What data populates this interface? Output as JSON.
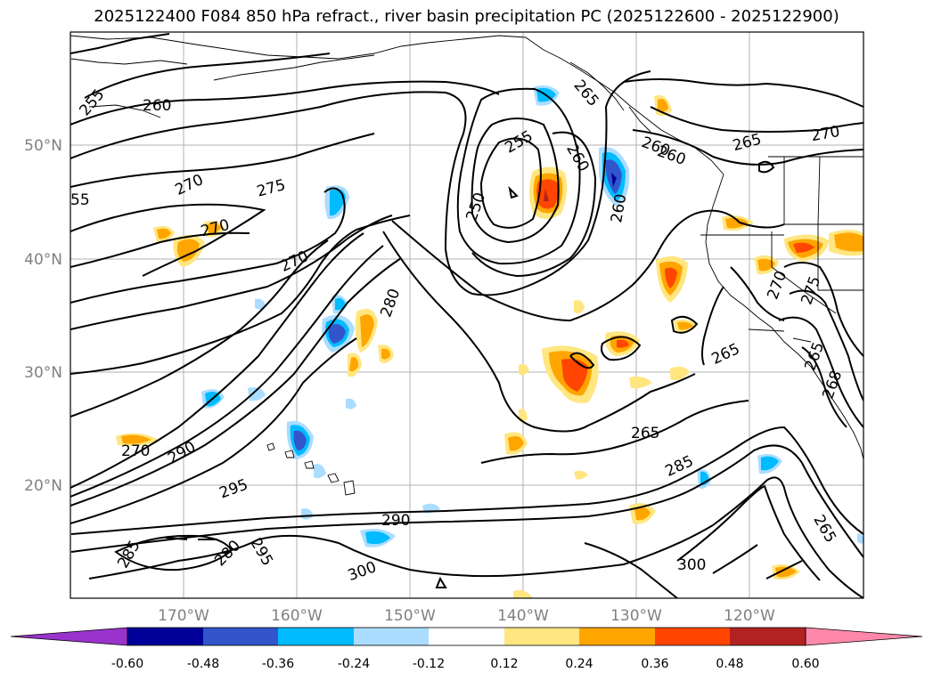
{
  "title": "2025122400 F084 850 hPa refract., river basin precipitation PC (2025122600 - 2025122900)",
  "map": {
    "lat_labels": [
      "50°N",
      "40°N",
      "30°N",
      "20°N"
    ],
    "lon_labels": [
      "170°W",
      "160°W",
      "150°W",
      "140°W",
      "130°W",
      "120°W"
    ],
    "contour_labels": [
      "255",
      "260",
      "265",
      "260",
      "270",
      "260",
      "55",
      "270",
      "275",
      "255",
      "260",
      "250",
      "260",
      "265",
      "270",
      "270",
      "280",
      "275",
      "270",
      "265",
      "270",
      "290",
      "295",
      "265",
      "285",
      "285",
      "280",
      "295",
      "290",
      "300",
      "300",
      "265",
      "265",
      "268"
    ]
  },
  "colorbar": {
    "ticks": [
      "-0.60",
      "-0.48",
      "-0.36",
      "-0.24",
      "-0.12",
      "0.12",
      "0.24",
      "0.36",
      "0.48",
      "0.60"
    ],
    "colors": [
      "#9933cc",
      "#000099",
      "#3355cc",
      "#00bbff",
      "#aaddff",
      "#ffffff",
      "#ffe680",
      "#ffa500",
      "#ff4500",
      "#b22222",
      "#ff88aa"
    ]
  }
}
